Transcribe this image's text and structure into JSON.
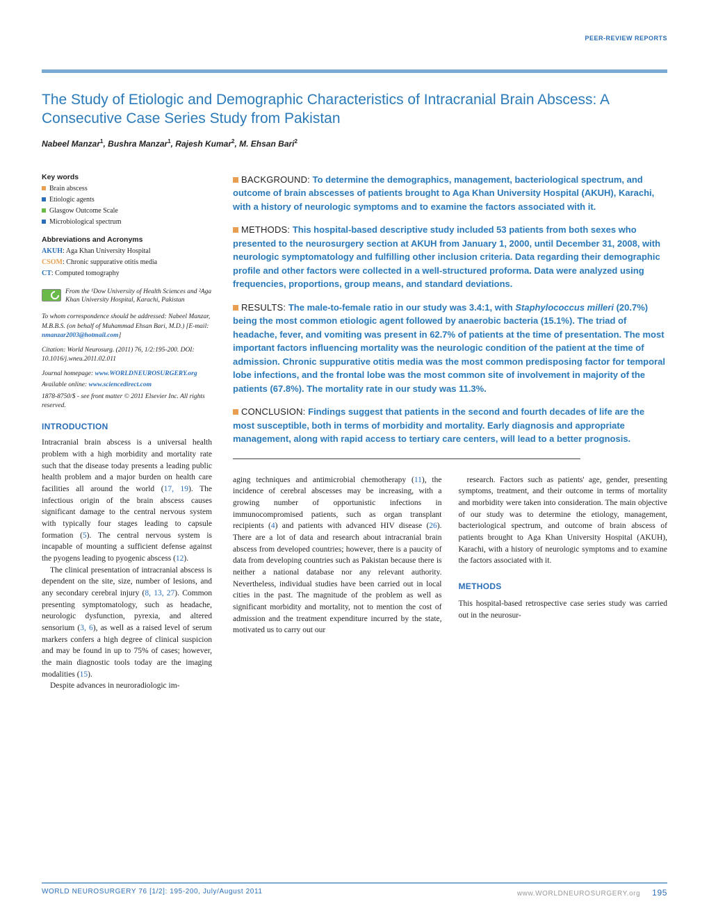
{
  "header_label": "Peer-Review Reports",
  "colors": {
    "bar": "#7aaad4",
    "title": "#2a7aba",
    "link": "#2a6eb8",
    "abs_bullet": "#e8a050",
    "kw_bullets": [
      "#e8a050",
      "#2a6eb8",
      "#6aba4a",
      "#2a6eb8"
    ]
  },
  "title": "The Study of Etiologic and Demographic Characteristics of Intracranial Brain Abscess: A Consecutive Case Series Study from Pakistan",
  "authors_html": "Nabeel Manzar<sup>1</sup>, Bushra Manzar<sup>1</sup>, Rajesh Kumar<sup>2</sup>, M. Ehsan Bari<sup>2</sup>",
  "keywords_heading": "Key words",
  "keywords": [
    "Brain abscess",
    "Etiologic agents",
    "Glasgow Outcome Scale",
    "Microbiological spectrum"
  ],
  "abbr_heading": "Abbreviations and Acronyms",
  "abbreviations": [
    {
      "term": "AKUH",
      "def": "Aga Khan University Hospital",
      "color": "#2a6eb8"
    },
    {
      "term": "CSOM",
      "def": "Chronic suppurative otitis media",
      "color": "#e8a050"
    },
    {
      "term": "CT",
      "def": "Computed tomography",
      "color": "#2a6eb8"
    }
  ],
  "affiliation": "From the ¹Dow University of Health Sciences and ²Aga Khan University Hospital, Karachi, Pakistan",
  "correspondence": "To whom correspondence should be addressed: Nabeel Manzar, M.B.B.S. (on behalf of Muhammad Ehsan Bari, M.D.) [E-mail: ",
  "email": "nmanzar2003@hotmail.com",
  "citation": "Citation: World Neurosurg. (2011) 76, 1/2:195-200. DOI: 10.1016/j.wneu.2011.02.011",
  "homepage_label": "Journal homepage: ",
  "homepage_url": "www.WORLDNEUROSURGERY.org",
  "online_label": "Available online: ",
  "online_url": "www.sciencedirect.com",
  "copyright": "1878-8750/$ - see front matter © 2011 Elsevier Inc. All rights reserved.",
  "intro_heading": "INTRODUCTION",
  "intro_p1": "Intracranial brain abscess is a universal health problem with a high morbidity and mortality rate such that the disease today presents a leading public health problem and a major burden on health care facilities all around the world (17, 19). The infectious origin of the brain abscess causes significant damage to the central nervous system with typically four stages leading to capsule formation (5). The central nervous system is incapable of mounting a sufficient defense against the pyogens leading to pyogenic abscess (12).",
  "intro_p2": "The clinical presentation of intracranial abscess is dependent on the site, size, number of lesions, and any secondary cerebral injury (8, 13, 27). Common presenting symptomatology, such as headache, neurologic dysfunction, pyrexia, and altered sensorium (3, 6), as well as a raised level of serum markers confers a high degree of clinical suspicion and may be found in up to 75% of cases; however, the main diagnostic tools today are the imaging modalities (15).",
  "intro_p3": "Despite advances in neuroradiologic im-",
  "abstract": {
    "background": {
      "label": "BACKGROUND:",
      "text": "To determine the demographics, management, bacteriological spectrum, and outcome of brain abscesses of patients brought to Aga Khan University Hospital (AKUH), Karachi, with a history of neurologic symptoms and to examine the factors associated with it."
    },
    "methods": {
      "label": "METHODS:",
      "text": "This hospital-based descriptive study included 53 patients from both sexes who presented to the neurosurgery section at AKUH from January 1, 2000, until December 31, 2008, with neurologic symptomatology and fulfilling other inclusion criteria. Data regarding their demographic profile and other factors were collected in a well-structured proforma. Data were analyzed using frequencies, proportions, group means, and standard deviations."
    },
    "results": {
      "label": "RESULTS:",
      "text": "The male-to-female ratio in our study was 3.4:1, with Staphylococcus milleri (20.7%) being the most common etiologic agent followed by anaerobic bacteria (15.1%). The triad of headache, fever, and vomiting was present in 62.7% of patients at the time of presentation. The most important factors influencing mortality was the neurologic condition of the patient at the time of admission. Chronic suppurative otitis media was the most common predisposing factor for temporal lobe infections, and the frontal lobe was the most common site of involvement in majority of the patients (67.8%). The mortality rate in our study was 11.3%."
    },
    "conclusion": {
      "label": "CONCLUSION:",
      "text": "Findings suggest that patients in the second and fourth decades of life are the most susceptible, both in terms of morbidity and mortality. Early diagnosis and appropriate management, along with rapid access to tertiary care centers, will lead to a better prognosis."
    }
  },
  "col_text1": "aging techniques and antimicrobial chemotherapy (11), the incidence of cerebral abscesses may be increasing, with a growing number of opportunistic infections in immunocompromised patients, such as organ transplant recipients (4) and patients with advanced HIV disease (26). There are a lot of data and research about intracranial brain abscess from developed countries; however, there is a paucity of data from developing countries such as Pakistan because there is neither a national database nor any relevant authority. Nevertheless, individual studies have been carried out in local cities in the past. The magnitude of the problem as well as significant morbidity and mortality, not to mention the cost of admission and the treatment expenditure incurred by the state, motivated us to carry out our",
  "col_text2": "research. Factors such as patients' age, gender, presenting symptoms, treatment, and their outcome in terms of mortality and morbidity were taken into consideration. The main objective of our study was to determine the etiology, management, bacteriological spectrum, and outcome of brain abscess of patients brought to Aga Khan University Hospital (AKUH), Karachi, with a history of neurologic symptoms and to examine the factors associated with it.",
  "methods_heading": "METHODS",
  "methods_p1": "This hospital-based retrospective case series study was carried out in the neurosur-",
  "footer": {
    "left": "WORLD NEUROSURGERY 76 [1/2]: 195-200, July/August 2011",
    "right": "www.WORLDNEUROSURGERY.org",
    "page": "195"
  }
}
